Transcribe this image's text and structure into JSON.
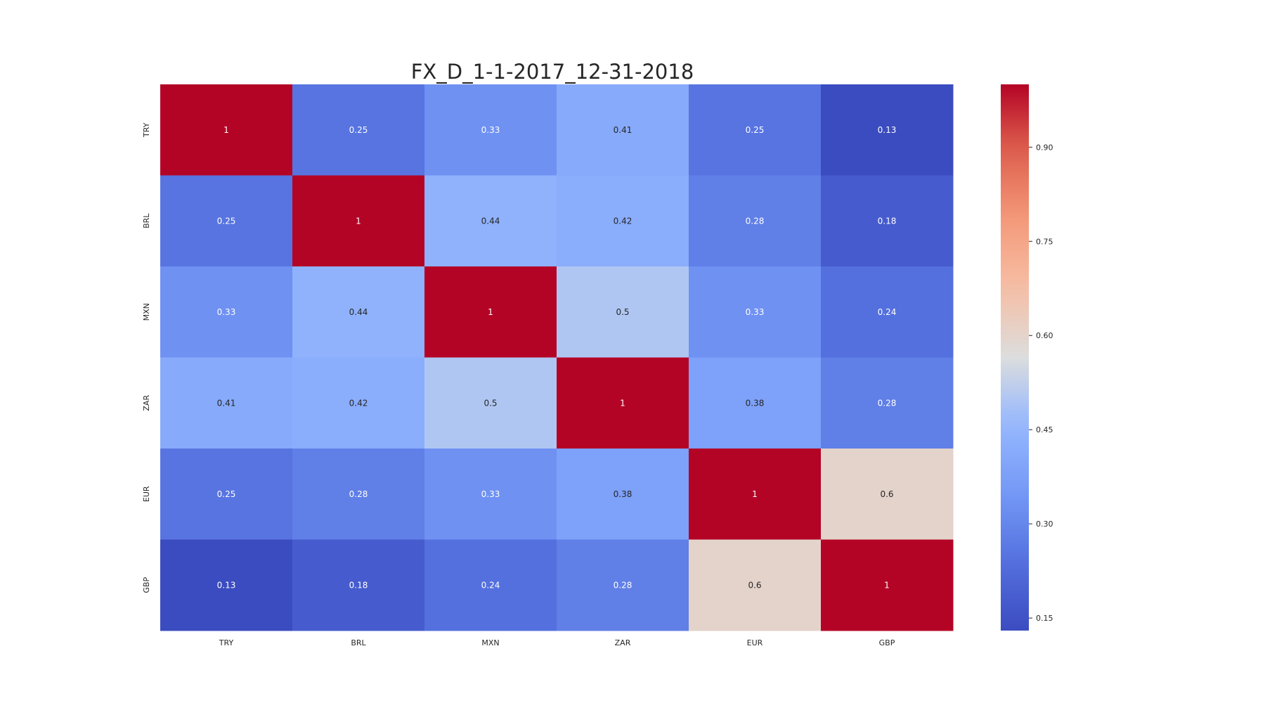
{
  "chart_data": {
    "type": "heatmap",
    "title": "FX_D_1-1-2017_12-31-2018",
    "x_labels": [
      "TRY",
      "BRL",
      "MXN",
      "ZAR",
      "EUR",
      "GBP"
    ],
    "y_labels": [
      "TRY",
      "BRL",
      "MXN",
      "ZAR",
      "EUR",
      "GBP"
    ],
    "values": [
      [
        1,
        0.25,
        0.33,
        0.41,
        0.25,
        0.13
      ],
      [
        0.25,
        1,
        0.44,
        0.42,
        0.28,
        0.18
      ],
      [
        0.33,
        0.44,
        1,
        0.5,
        0.33,
        0.24
      ],
      [
        0.41,
        0.42,
        0.5,
        1,
        0.38,
        0.28
      ],
      [
        0.25,
        0.28,
        0.33,
        0.38,
        1,
        0.6
      ],
      [
        0.13,
        0.18,
        0.24,
        0.28,
        0.6,
        1
      ]
    ],
    "cell_labels": [
      [
        "1",
        "0.25",
        "0.33",
        "0.41",
        "0.25",
        "0.13"
      ],
      [
        "0.25",
        "1",
        "0.44",
        "0.42",
        "0.28",
        "0.18"
      ],
      [
        "0.33",
        "0.44",
        "1",
        "0.5",
        "0.33",
        "0.24"
      ],
      [
        "0.41",
        "0.42",
        "0.5",
        "1",
        "0.38",
        "0.28"
      ],
      [
        "0.25",
        "0.28",
        "0.33",
        "0.38",
        "1",
        "0.6"
      ],
      [
        "0.13",
        "0.18",
        "0.24",
        "0.28",
        "0.6",
        "1"
      ]
    ],
    "colormap": "coolwarm",
    "colorbar": {
      "range": [
        0.13,
        1
      ],
      "ticks": [
        0.15,
        0.3,
        0.45,
        0.6,
        0.75,
        0.9
      ],
      "tick_labels": [
        "0.15",
        "0.30",
        "0.45",
        "0.60",
        "0.75",
        "0.90"
      ]
    }
  }
}
